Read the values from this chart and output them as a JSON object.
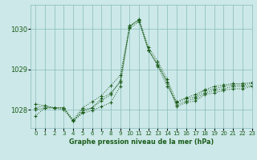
{
  "title": "Graphe pression niveau de la mer (hPa)",
  "background_color": "#cce8e8",
  "grid_color": "#88bbbb",
  "line_color": "#1a5c1a",
  "xlim": [
    -0.5,
    23
  ],
  "ylim": [
    1027.55,
    1030.6
  ],
  "yticks": [
    1028,
    1029,
    1030
  ],
  "xticks": [
    0,
    1,
    2,
    3,
    4,
    5,
    6,
    7,
    8,
    9,
    10,
    11,
    12,
    13,
    14,
    15,
    16,
    17,
    18,
    19,
    20,
    21,
    22,
    23
  ],
  "series": [
    [
      1027.85,
      1028.05,
      1028.05,
      1028.05,
      1027.75,
      1028.05,
      1028.2,
      1028.35,
      1028.6,
      1028.85,
      1030.05,
      1030.25,
      1029.55,
      1029.2,
      1028.75,
      1028.2,
      1028.3,
      1028.38,
      1028.5,
      1028.58,
      1028.62,
      1028.65,
      1028.65,
      1028.68
    ],
    [
      1028.0,
      1028.05,
      1028.05,
      1028.0,
      1027.72,
      1027.92,
      1027.98,
      1028.08,
      1028.18,
      1028.58,
      1030.08,
      1030.22,
      1029.48,
      1029.12,
      1028.68,
      1028.12,
      1028.22,
      1028.28,
      1028.42,
      1028.48,
      1028.52,
      1028.58,
      1028.58,
      1028.6
    ],
    [
      1028.15,
      1028.1,
      1028.05,
      1028.05,
      1027.72,
      1028.0,
      1028.05,
      1028.22,
      1028.38,
      1028.72,
      1030.08,
      1030.22,
      1029.48,
      1029.12,
      1028.68,
      1028.08,
      1028.18,
      1028.22,
      1028.38,
      1028.42,
      1028.48,
      1028.52,
      1028.52,
      1028.58
    ],
    [
      1028.05,
      1028.1,
      1028.05,
      1028.05,
      1027.72,
      1027.95,
      1028.05,
      1028.28,
      1028.42,
      1028.68,
      1030.02,
      1030.18,
      1029.48,
      1029.08,
      1028.58,
      1028.18,
      1028.28,
      1028.32,
      1028.48,
      1028.52,
      1028.58,
      1028.62,
      1028.62,
      1028.65
    ]
  ]
}
